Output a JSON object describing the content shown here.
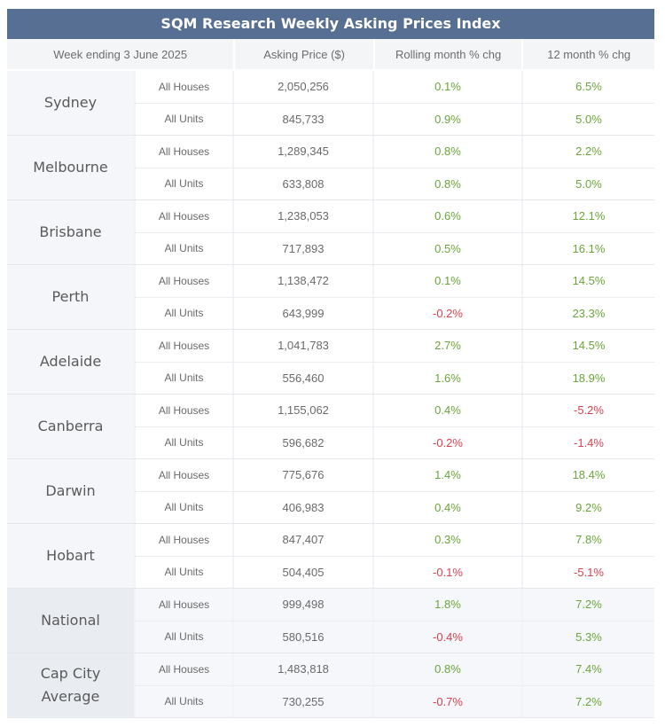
{
  "title": "SQM Research Weekly Asking Prices Index",
  "headers": {
    "week": "Week ending 3 June 2025",
    "price": "Asking Price ($)",
    "month": "Rolling month % chg",
    "year": "12 month % chg"
  },
  "colors": {
    "header": "#566f93",
    "positive": "#6aa53a",
    "negative": "#d9414e"
  },
  "cities": [
    {
      "name": "Sydney",
      "rows": [
        {
          "type": "All Houses",
          "price": "2,050,256",
          "month": "0.1%",
          "year": "6.5%"
        },
        {
          "type": "All Units",
          "price": "845,733",
          "month": "0.9%",
          "year": "5.0%"
        }
      ]
    },
    {
      "name": "Melbourne",
      "rows": [
        {
          "type": "All Houses",
          "price": "1,289,345",
          "month": "0.8%",
          "year": "2.2%"
        },
        {
          "type": "All Units",
          "price": "633,808",
          "month": "0.8%",
          "year": "5.0%"
        }
      ]
    },
    {
      "name": "Brisbane",
      "rows": [
        {
          "type": "All Houses",
          "price": "1,238,053",
          "month": "0.6%",
          "year": "12.1%"
        },
        {
          "type": "All Units",
          "price": "717,893",
          "month": "0.5%",
          "year": "16.1%"
        }
      ]
    },
    {
      "name": "Perth",
      "rows": [
        {
          "type": "All Houses",
          "price": "1,138,472",
          "month": "0.1%",
          "year": "14.5%"
        },
        {
          "type": "All Units",
          "price": "643,999",
          "month": "-0.2%",
          "year": "23.3%"
        }
      ]
    },
    {
      "name": "Adelaide",
      "rows": [
        {
          "type": "All Houses",
          "price": "1,041,783",
          "month": "2.7%",
          "year": "14.5%"
        },
        {
          "type": "All Units",
          "price": "556,460",
          "month": "1.6%",
          "year": "18.9%"
        }
      ]
    },
    {
      "name": "Canberra",
      "rows": [
        {
          "type": "All Houses",
          "price": "1,155,062",
          "month": "0.4%",
          "year": "-5.2%"
        },
        {
          "type": "All Units",
          "price": "596,682",
          "month": "-0.2%",
          "year": "-1.4%"
        }
      ]
    },
    {
      "name": "Darwin",
      "rows": [
        {
          "type": "All Houses",
          "price": "775,676",
          "month": "1.4%",
          "year": "18.4%"
        },
        {
          "type": "All Units",
          "price": "406,983",
          "month": "0.4%",
          "year": "9.2%"
        }
      ]
    },
    {
      "name": "Hobart",
      "rows": [
        {
          "type": "All Houses",
          "price": "847,407",
          "month": "0.3%",
          "year": "7.8%"
        },
        {
          "type": "All Units",
          "price": "504,405",
          "month": "-0.1%",
          "year": "-5.1%"
        }
      ]
    },
    {
      "name": "National",
      "rows": [
        {
          "type": "All Houses",
          "price": "999,498",
          "month": "1.8%",
          "year": "7.2%"
        },
        {
          "type": "All Units",
          "price": "580,516",
          "month": "-0.4%",
          "year": "5.3%"
        }
      ]
    },
    {
      "name": "Cap City Average",
      "rows": [
        {
          "type": "All Houses",
          "price": "1,483,818",
          "month": "0.8%",
          "year": "7.4%"
        },
        {
          "type": "All Units",
          "price": "730,255",
          "month": "-0.7%",
          "year": "7.2%"
        }
      ]
    }
  ]
}
